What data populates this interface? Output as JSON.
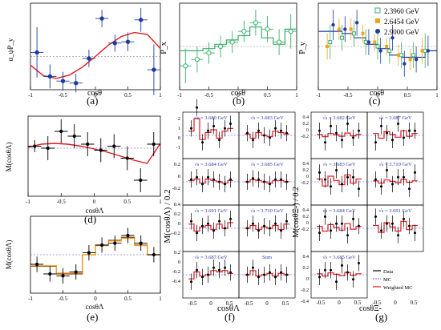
{
  "colors": {
    "black": "#000000",
    "red": "#e0191f",
    "green": "#39b06a",
    "orange": "#f2a21b",
    "blue": "#1f3b9c",
    "violet": "#8a7df0",
    "histbrown": "#8a3b1e",
    "gray": "#888888",
    "labelblue": "#2a3aa8"
  },
  "chart_data": [
    {
      "type": "scatter",
      "panel": "(a)",
      "xlabel": "cosθ",
      "ylabel": "α_ψP_y",
      "xlim": [
        -1,
        1
      ],
      "ylim": [
        -0.5,
        0.8
      ],
      "xticks": [
        "-1",
        "-0.5",
        "0",
        "0.5",
        "1"
      ],
      "points": {
        "x": [
          -0.9,
          -0.7,
          -0.5,
          -0.3,
          -0.1,
          0.1,
          0.3,
          0.5,
          0.7,
          0.9
        ],
        "y": [
          0.06,
          -0.3,
          -0.37,
          -0.4,
          -0.03,
          0.57,
          0.2,
          0.22,
          0.55,
          -0.2
        ],
        "err": [
          0.38,
          0.18,
          0.14,
          0.14,
          0.13,
          0.13,
          0.13,
          0.14,
          0.18,
          0.38
        ]
      },
      "fit_curve": {
        "x": [
          -1,
          -0.8,
          -0.6,
          -0.4,
          -0.2,
          0,
          0.2,
          0.4,
          0.6,
          0.8,
          1
        ],
        "y": [
          -0.13,
          -0.29,
          -0.33,
          -0.28,
          -0.16,
          0.0,
          0.17,
          0.3,
          0.36,
          0.33,
          0.12
        ]
      }
    },
    {
      "type": "scatter",
      "panel": "(b)",
      "xlabel": "cosθ",
      "ylabel": "P_x",
      "xlim": [
        -1,
        1
      ],
      "ylim": [
        -1,
        1
      ],
      "xticks": [
        "-1",
        "-0.5",
        "0",
        "0.5",
        "1"
      ],
      "points": {
        "x": [
          -0.9,
          -0.7,
          -0.5,
          -0.3,
          -0.1,
          0.1,
          0.3,
          0.5,
          0.7,
          0.9
        ],
        "y": [
          -0.45,
          -0.3,
          -0.15,
          0.0,
          0.1,
          0.35,
          0.55,
          0.4,
          0.1,
          0.35
        ],
        "err": [
          0.4,
          0.3,
          0.25,
          0.25,
          0.25,
          0.25,
          0.3,
          0.3,
          0.3,
          0.4
        ]
      },
      "hist": {
        "edges": [
          -1,
          -0.8,
          -0.6,
          -0.4,
          -0.2,
          0,
          0.2,
          0.4,
          0.6,
          0.8,
          1
        ],
        "values": [
          -0.1,
          -0.1,
          -0.05,
          0.05,
          0.15,
          0.25,
          0.45,
          0.2,
          0.05,
          0.4
        ]
      }
    },
    {
      "type": "scatter",
      "panel": "(c)",
      "xlabel": "cosθ",
      "ylabel": "P_y",
      "xlim": [
        -1,
        1
      ],
      "ylim": [
        -1,
        1
      ],
      "xticks": [
        "-1",
        "-0.5",
        "0",
        "0.5",
        "1"
      ],
      "legend": [
        "2.3960 GeV",
        "2.6454 GeV",
        "2.9000 GeV"
      ],
      "legend_position": "top-right",
      "series": [
        {
          "name": "2.3960 GeV",
          "x": [
            -0.8,
            -0.6,
            -0.4,
            -0.2,
            0,
            0.2,
            0.4,
            0.6,
            0.8
          ],
          "y": [
            0.1,
            0.2,
            0.3,
            0.1,
            0.0,
            -0.1,
            -0.2,
            -0.2,
            -0.1
          ],
          "err": [
            0.4,
            0.3,
            0.3,
            0.3,
            0.3,
            0.3,
            0.3,
            0.3,
            0.4
          ]
        },
        {
          "name": "2.6454 GeV",
          "x": [
            -0.85,
            -0.65,
            -0.45,
            -0.25,
            -0.05,
            0.15,
            0.35,
            0.55,
            0.75
          ],
          "y": [
            0.0,
            0.4,
            0.4,
            0.3,
            0.1,
            0.0,
            -0.2,
            -0.3,
            -0.1
          ],
          "err": [
            0.3,
            0.25,
            0.25,
            0.2,
            0.2,
            0.2,
            0.25,
            0.25,
            0.3
          ]
        },
        {
          "name": "2.9000 GeV",
          "x": [
            -0.75,
            -0.55,
            -0.35,
            -0.15,
            0.05,
            0.25,
            0.45,
            0.65,
            0.85
          ],
          "y": [
            0.5,
            0.4,
            0.55,
            0.1,
            -0.1,
            0.2,
            -0.4,
            -0.3,
            -0.1
          ],
          "err": [
            0.35,
            0.3,
            0.3,
            0.3,
            0.3,
            0.3,
            0.3,
            0.3,
            0.35
          ]
        }
      ],
      "hist": {
        "edges": [
          -1,
          -0.8,
          -0.6,
          -0.4,
          -0.2,
          0,
          0.2,
          0.4,
          0.6,
          0.8,
          1
        ],
        "values": [
          0.35,
          0.35,
          0.3,
          0.2,
          0.05,
          -0.05,
          -0.2,
          -0.25,
          -0.25,
          -0.1
        ]
      }
    },
    {
      "type": "scatter",
      "panel": "(d)",
      "xlabel": "cosθΛ",
      "ylabel": "M(cosθΛ)",
      "xlim": [
        -1,
        1
      ],
      "ylim": [
        -1.2,
        0.8
      ],
      "xticks": [
        "-1",
        "-0.5",
        "0",
        "0.5",
        "1"
      ],
      "points": {
        "x": [
          -0.9,
          -0.7,
          -0.5,
          -0.3,
          -0.1,
          0.1,
          0.3,
          0.5,
          0.7,
          0.9
        ],
        "y": [
          0.05,
          0.0,
          0.42,
          0.3,
          0.1,
          -0.05,
          0.05,
          -0.25,
          -0.8,
          0.1
        ],
        "err": [
          0.15,
          0.3,
          0.3,
          0.3,
          0.3,
          0.3,
          0.3,
          0.3,
          0.3,
          0.3
        ]
      },
      "fit_curve": {
        "x": [
          -1,
          -0.8,
          -0.6,
          -0.4,
          -0.2,
          0,
          0.2,
          0.4,
          0.6,
          0.8,
          1
        ],
        "y": [
          0.02,
          0.1,
          0.12,
          0.1,
          0.05,
          -0.02,
          -0.1,
          -0.2,
          -0.3,
          -0.38,
          0.12
        ]
      }
    },
    {
      "type": "scatter",
      "panel": "(e)",
      "xlabel": "cosθΛ",
      "ylabel": "M(cosθΛ)",
      "xlim": [
        -1,
        1
      ],
      "ylim": [
        -0.4,
        0.4
      ],
      "xticks": [
        "-1",
        "-0.5",
        "0",
        "0.5",
        "1"
      ],
      "points": {
        "x": [
          -0.9,
          -0.7,
          -0.5,
          -0.3,
          -0.1,
          0.1,
          0.3,
          0.5,
          0.7,
          0.9
        ],
        "y": [
          -0.1,
          -0.2,
          -0.22,
          -0.18,
          0.02,
          0.1,
          0.12,
          0.2,
          0.12,
          0.0
        ],
        "err": [
          0.08,
          0.08,
          0.08,
          0.08,
          0.08,
          0.08,
          0.08,
          0.08,
          0.08,
          0.08
        ]
      },
      "hist": {
        "edges": [
          -1,
          -0.8,
          -0.6,
          -0.4,
          -0.2,
          0,
          0.2,
          0.4,
          0.6,
          0.8,
          1
        ],
        "values": [
          -0.12,
          -0.12,
          -0.2,
          -0.2,
          0.0,
          0.1,
          0.15,
          0.18,
          0.1,
          0.0
        ]
      }
    },
    {
      "type": "scatter",
      "panel": "(f)",
      "xlabel": "cosθΛ",
      "ylabel": "M(cosθΛ) / 0.2",
      "xlim": [
        -1,
        1
      ],
      "subpanels": [
        {
          "label": "√s = 3.680 GeV",
          "y": [
            0.3,
            1.2,
            -0.3,
            0.2,
            0.4,
            -0.2,
            0.3,
            0.5
          ]
        },
        {
          "label": "√s = 3.683 GeV",
          "y": [
            0.1,
            -0.2,
            0.2,
            0.0,
            -0.1,
            0.3,
            0.2,
            0.1
          ]
        },
        {
          "label": "√s = 3.684 GeV",
          "y": [
            0.1,
            0.2,
            -0.1,
            0.2,
            0.1,
            0.0,
            -0.1,
            0.1
          ]
        },
        {
          "label": "√s = 3.685 GeV",
          "y": [
            0.0,
            0.15,
            0.1,
            0.0,
            -0.1,
            0.1,
            0.1,
            0.0
          ]
        },
        {
          "label": "√s = 3.691 GeV",
          "y": [
            0.3,
            -0.2,
            0.1,
            0.2,
            -0.1,
            0.3,
            0.0,
            0.4
          ]
        },
        {
          "label": "√s = 3.710 GeV",
          "y": [
            0.0,
            0.2,
            -0.1,
            0.1,
            0.0,
            0.2,
            -0.1,
            0.3
          ]
        },
        {
          "label": "√s = 3.687 GeV",
          "y": [
            -0.3,
            0.2,
            -0.1,
            0.0,
            0.3,
            0.2,
            0.3,
            0.1
          ]
        },
        {
          "label": "Sum",
          "y": [
            0.0,
            0.3,
            -0.1,
            0.0,
            0.1,
            -0.1,
            0.1,
            0.0
          ]
        }
      ],
      "left_yticks": [
        "2",
        "1",
        "0",
        "-1",
        "0.2",
        "0",
        "-0.2",
        "0.4",
        "0.2",
        "0",
        "-0.2",
        "0.2",
        "0",
        "-0.2",
        "-0.4"
      ],
      "xticks": [
        "-0.5",
        "0",
        "0.5",
        "-0.5",
        "0",
        "0.5"
      ]
    },
    {
      "type": "scatter",
      "panel": "(g)",
      "xlabel": "cosθΞ-",
      "ylabel": "M(cosθΞ-) / 0.2",
      "subpanels": [
        {
          "label": "√s = 3.682 GeV"
        },
        {
          "label": "√s = 3.687 GeV"
        },
        {
          "label": "√s = 3.683 GeV"
        },
        {
          "label": "√s = 3.710 GeV"
        },
        {
          "label": "√s = 3.684 GeV"
        },
        {
          "label": "√s = 3.691 GeV"
        },
        {
          "label": "√s = 3.685 GeV"
        }
      ],
      "left_yticks": [
        "0.4",
        "0.2",
        "0",
        "-0.2",
        "0.4",
        "0.2",
        "0",
        "-0.2",
        "0.4",
        "0.2",
        "0",
        "-0.2",
        "0.4",
        "0.2",
        "0",
        "-0.2",
        "-0.4"
      ],
      "xticks": [
        "-0.5",
        "0",
        "0.5",
        "-0.5",
        "0",
        "0.5"
      ],
      "legend": [
        "Data",
        "MC",
        "Weighted MC"
      ]
    }
  ],
  "labels": {
    "a": "(a)",
    "b": "(b)",
    "c": "(c)",
    "d": "(d)",
    "e": "(e)",
    "f": "(f)",
    "g": "(g)"
  }
}
